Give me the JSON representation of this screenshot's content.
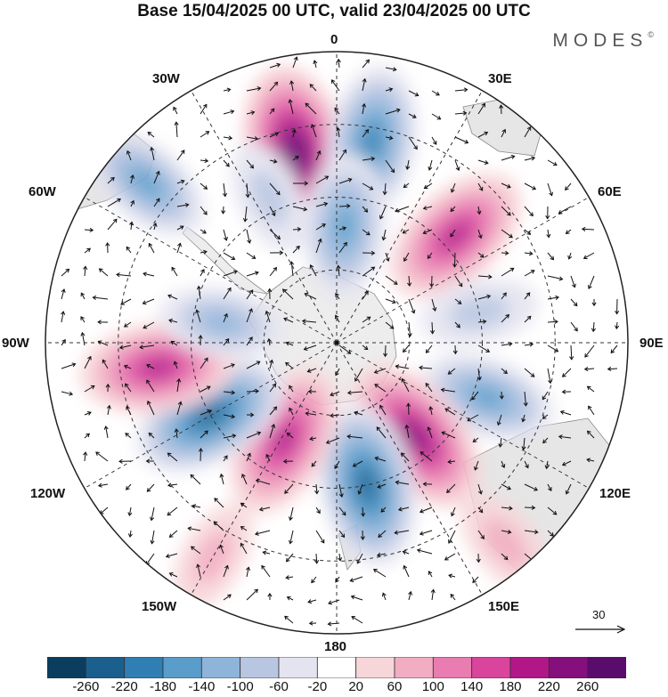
{
  "title": "Base 15/04/2025 00 UTC, valid 23/04/2025 00 UTC",
  "brand": "MODES",
  "brand_mark": "©",
  "longitude_labels": {
    "lon_0": "0",
    "lon_30e": "30E",
    "lon_60e": "60E",
    "lon_90e": "90E",
    "lon_120e": "120E",
    "lon_150e": "150E",
    "lon_180": "180",
    "lon_150w": "150W",
    "lon_120w": "120W",
    "lon_90w": "90W",
    "lon_60w": "60W",
    "lon_30w": "30W"
  },
  "reference_vector": {
    "value": "30"
  },
  "colorbar": {
    "colors": [
      "#0b3d5e",
      "#1a5f8e",
      "#2f7fb5",
      "#5b9dca",
      "#8fb4da",
      "#b9c6e2",
      "#e4e4f0",
      "#ffffff",
      "#f7d6d9",
      "#f2adc2",
      "#e97cb1",
      "#d9449d",
      "#b21788",
      "#850f7c",
      "#5a0c6c"
    ],
    "tick_labels": [
      "-260",
      "-220",
      "-180",
      "-140",
      "-100",
      "-60",
      "-20",
      "20",
      "60",
      "100",
      "140",
      "180",
      "220",
      "260"
    ]
  },
  "map_data": {
    "projection": "south polar stereographic",
    "field": "anomaly shading with wind vectors",
    "features": [
      {
        "lon": -12,
        "colat": 0.67,
        "value": 250
      },
      {
        "lon": 10,
        "colat": 0.7,
        "value": -180
      },
      {
        "lon": 4,
        "colat": 0.4,
        "value": -150
      },
      {
        "lon": 48,
        "colat": 0.55,
        "value": 190
      },
      {
        "lon": 78,
        "colat": 0.5,
        "value": -70
      },
      {
        "lon": 110,
        "colat": 0.55,
        "value": -130
      },
      {
        "lon": 140,
        "colat": 0.42,
        "value": 220
      },
      {
        "lon": 168,
        "colat": 0.5,
        "value": -210
      },
      {
        "lon": -152,
        "colat": 0.38,
        "value": 190
      },
      {
        "lon": -120,
        "colat": 0.5,
        "value": -200
      },
      {
        "lon": -98,
        "colat": 0.62,
        "value": 190
      },
      {
        "lon": -80,
        "colat": 0.4,
        "value": -90
      },
      {
        "lon": -50,
        "colat": 0.85,
        "value": -120
      },
      {
        "lon": -25,
        "colat": 0.55,
        "value": -60
      },
      {
        "lon": 140,
        "colat": 0.9,
        "value": 60
      },
      {
        "lon": -150,
        "colat": 0.85,
        "value": 60
      }
    ]
  }
}
